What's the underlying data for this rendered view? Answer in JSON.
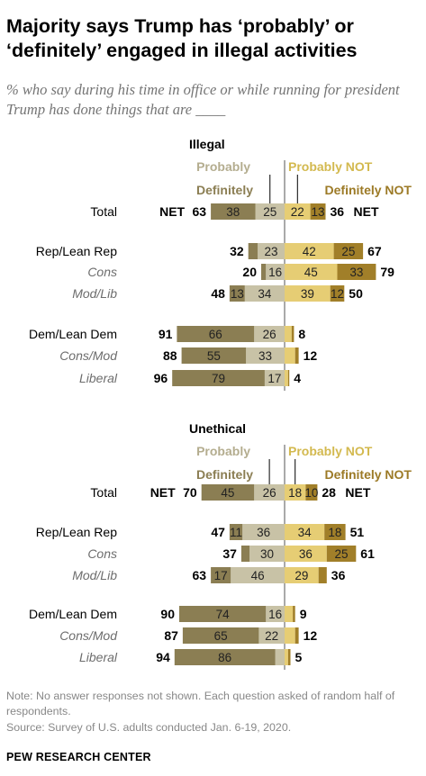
{
  "title": "Majority says Trump has ‘probably’ or ‘definitely’ engaged in illegal activities",
  "subtitle": "% who say during his time in office or while running for president Trump has done things that are ____",
  "note": "Note: No answer responses not shown. Each question asked of random half of respondents.",
  "source": "Source: Survey of U.S. adults conducted Jan. 6-19, 2020.",
  "footer": "PEW RESEARCH CENTER",
  "colors": {
    "definitely": "#8b7e53",
    "probably": "#c8c2a6",
    "probably_not": "#e6cd74",
    "definitely_not": "#a17f29",
    "legend_probably": "#b4ad8f",
    "legend_probably_not": "#d3b94f",
    "legend_definitely": "#8b7e53",
    "legend_definitely_not": "#9c7a26"
  },
  "chart_data": [
    {
      "type": "bar",
      "orientation": "horizontal-diverging",
      "title": "Illegal",
      "legend": {
        "definitely": "Definitely",
        "probably": "Probably",
        "probably_not": "Probably NOT",
        "definitely_not": "Definitely NOT"
      },
      "net_label": "NET",
      "categories": [
        "Total",
        "Rep/Lean Rep",
        "Cons",
        "Mod/Lib",
        "Dem/Lean Dem",
        "Cons/Mod",
        "Liberal"
      ],
      "category_style": [
        "main",
        "main",
        "sub",
        "sub",
        "main",
        "sub",
        "sub"
      ],
      "series": [
        {
          "name": "Definitely",
          "values": [
            38,
            8,
            4,
            13,
            66,
            55,
            79
          ]
        },
        {
          "name": "Probably",
          "values": [
            25,
            23,
            16,
            34,
            26,
            33,
            17
          ]
        },
        {
          "name": "Probably NOT",
          "values": [
            22,
            42,
            45,
            39,
            6,
            9,
            3
          ]
        },
        {
          "name": "Definitely NOT",
          "values": [
            13,
            25,
            33,
            12,
            2,
            3,
            1
          ]
        }
      ],
      "value_labels": {
        "definitely": [
          "38",
          "",
          "",
          "13",
          "66",
          "55",
          "79"
        ],
        "probably": [
          "25",
          "23",
          "16",
          "34",
          "26",
          "33",
          "17"
        ],
        "probably_not": [
          "22",
          "42",
          "45",
          "39",
          "",
          "",
          ""
        ],
        "definitely_not": [
          "13",
          "25",
          "33",
          "12",
          "",
          "",
          ""
        ]
      },
      "net_left": [
        63,
        32,
        20,
        48,
        91,
        88,
        96
      ],
      "net_right": [
        36,
        67,
        79,
        50,
        8,
        12,
        4
      ]
    },
    {
      "type": "bar",
      "orientation": "horizontal-diverging",
      "title": "Unethical",
      "legend": {
        "definitely": "Definitely",
        "probably": "Probably",
        "probably_not": "Probably NOT",
        "definitely_not": "Definitely NOT"
      },
      "net_label": "NET",
      "categories": [
        "Total",
        "Rep/Lean Rep",
        "Cons",
        "Mod/Lib",
        "Dem/Lean Dem",
        "Cons/Mod",
        "Liberal"
      ],
      "category_style": [
        "main",
        "main",
        "sub",
        "sub",
        "main",
        "sub",
        "sub"
      ],
      "series": [
        {
          "name": "Definitely",
          "values": [
            45,
            11,
            7,
            17,
            74,
            65,
            86
          ]
        },
        {
          "name": "Probably",
          "values": [
            26,
            36,
            30,
            46,
            16,
            22,
            8
          ]
        },
        {
          "name": "Probably NOT",
          "values": [
            18,
            34,
            36,
            29,
            7,
            9,
            3
          ]
        },
        {
          "name": "Definitely NOT",
          "values": [
            10,
            18,
            25,
            7,
            2,
            3,
            2
          ]
        }
      ],
      "value_labels": {
        "definitely": [
          "45",
          "11",
          "",
          "17",
          "74",
          "65",
          "86"
        ],
        "probably": [
          "26",
          "36",
          "30",
          "46",
          "16",
          "22",
          ""
        ],
        "probably_not": [
          "18",
          "34",
          "36",
          "29",
          "",
          "",
          ""
        ],
        "definitely_not": [
          "10",
          "18",
          "25",
          "",
          "",
          "",
          ""
        ]
      },
      "net_left": [
        70,
        47,
        37,
        63,
        90,
        87,
        94
      ],
      "net_right": [
        28,
        51,
        61,
        36,
        9,
        12,
        5
      ]
    }
  ]
}
